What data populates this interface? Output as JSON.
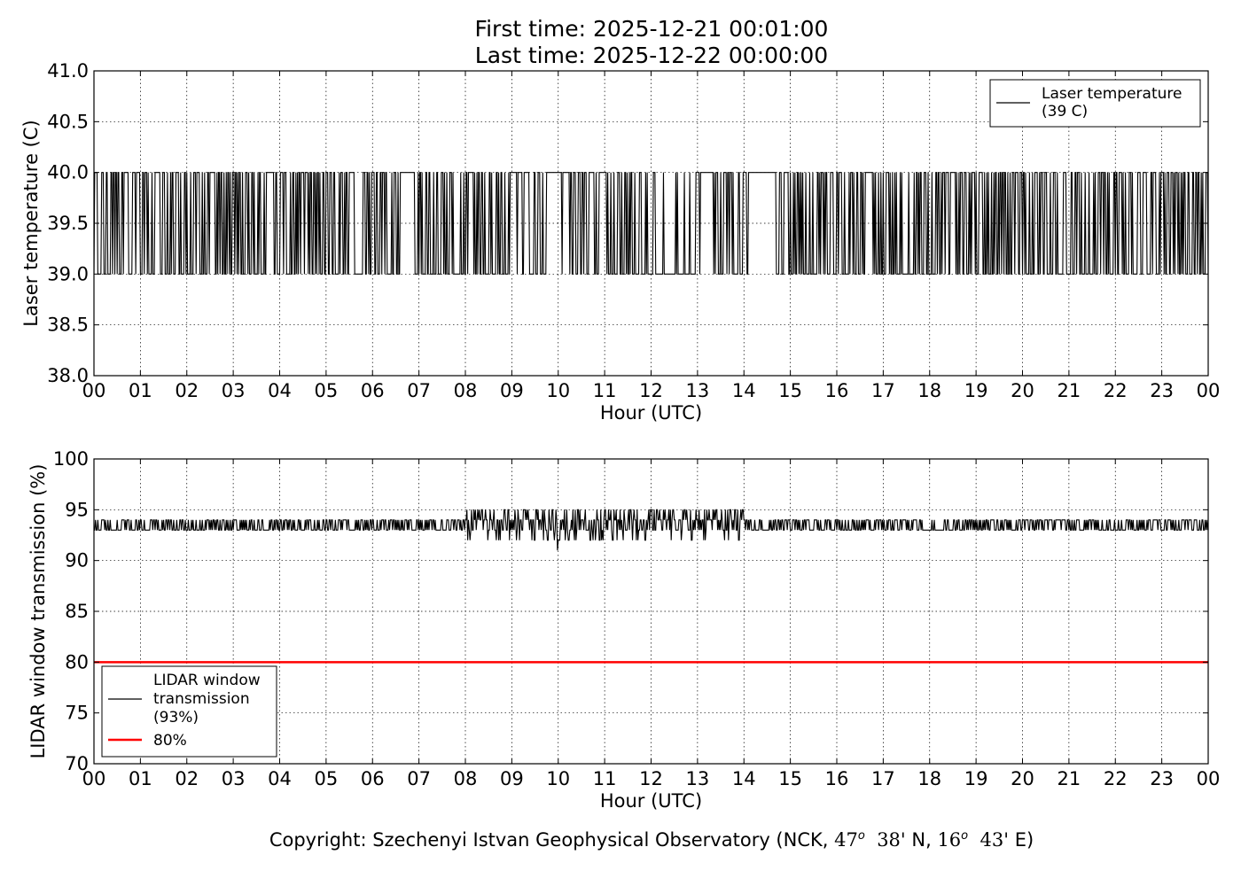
{
  "header": {
    "first_time": "First time: 2025-12-21 00:01:00",
    "last_time": "Last time: 2025-12-22 00:00:00"
  },
  "footer": {
    "prefix": "Copyright: Szechenyi Istvan Geophysical Observatory (NCK, ",
    "lat_deg": "47",
    "lat_min": "38'",
    "lat_suffix": "N, ",
    "lon_deg": "16",
    "lon_min": "43'",
    "lon_suffix": "E)",
    "degree_symbol": "o"
  },
  "colors": {
    "series_line": "#000000",
    "threshold_line": "#ff0000",
    "grid": "#000000",
    "background": "#ffffff"
  },
  "chart_data": [
    {
      "type": "line",
      "xlabel": "Hour (UTC)",
      "ylabel": "Laser temperature (C)",
      "xlim": [
        0,
        24
      ],
      "ylim": [
        38.0,
        41.0
      ],
      "x_ticks": [
        0,
        1,
        2,
        3,
        4,
        5,
        6,
        7,
        8,
        9,
        10,
        11,
        12,
        13,
        14,
        15,
        16,
        17,
        18,
        19,
        20,
        21,
        22,
        23,
        24
      ],
      "x_tick_labels": [
        "00",
        "01",
        "02",
        "03",
        "04",
        "05",
        "06",
        "07",
        "08",
        "09",
        "10",
        "11",
        "12",
        "13",
        "14",
        "15",
        "16",
        "17",
        "18",
        "19",
        "20",
        "21",
        "22",
        "23",
        "00"
      ],
      "y_ticks": [
        38.0,
        38.5,
        39.0,
        39.5,
        40.0,
        40.5,
        41.0
      ],
      "y_tick_labels": [
        "38.0",
        "38.5",
        "39.0",
        "39.5",
        "40.0",
        "40.5",
        "41.0"
      ],
      "grid": true,
      "legend_position": "top-right",
      "series": [
        {
          "name": "Laser temperature\n(39 C)",
          "legend_lines": [
            "Laser temperature",
            "(39 C)"
          ],
          "color": "#000000",
          "value_levels": [
            39.0,
            40.0
          ],
          "dense_switching": true
        }
      ]
    },
    {
      "type": "line",
      "xlabel": "Hour (UTC)",
      "ylabel": "LIDAR window transmission (%)",
      "xlim": [
        0,
        24
      ],
      "ylim": [
        70,
        100
      ],
      "x_ticks": [
        0,
        1,
        2,
        3,
        4,
        5,
        6,
        7,
        8,
        9,
        10,
        11,
        12,
        13,
        14,
        15,
        16,
        17,
        18,
        19,
        20,
        21,
        22,
        23,
        24
      ],
      "x_tick_labels": [
        "00",
        "01",
        "02",
        "03",
        "04",
        "05",
        "06",
        "07",
        "08",
        "09",
        "10",
        "11",
        "12",
        "13",
        "14",
        "15",
        "16",
        "17",
        "18",
        "19",
        "20",
        "21",
        "22",
        "23",
        "00"
      ],
      "y_ticks": [
        70,
        75,
        80,
        85,
        90,
        95,
        100
      ],
      "y_tick_labels": [
        "70",
        "75",
        "80",
        "85",
        "90",
        "95",
        "100"
      ],
      "grid": true,
      "legend_position": "bottom-left",
      "series": [
        {
          "name": "LIDAR window\ntransmission\n(93%)",
          "legend_lines": [
            "LIDAR window",
            "transmission",
            "(93%)"
          ],
          "color": "#000000",
          "value_levels": [
            91,
            92,
            93,
            94,
            95
          ],
          "dense_switching": true
        },
        {
          "name": "80%",
          "legend_lines": [
            "80%"
          ],
          "color": "#ff0000",
          "constant_value": 80
        }
      ]
    }
  ]
}
